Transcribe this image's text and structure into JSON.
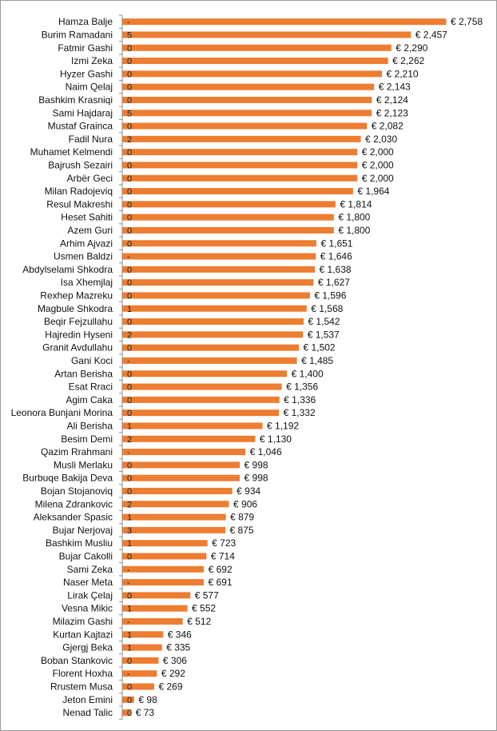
{
  "chart_data": {
    "type": "bar",
    "orientation": "horizontal",
    "title": "",
    "xlabel": "",
    "ylabel": "",
    "bar_color": "#ED7D31",
    "value_prefix": "€ ",
    "xlim": [
      0,
      2800
    ],
    "grid": false,
    "legend": "none",
    "categories": [
      "Hamza Balje",
      "Burim Ramadani",
      "Fatmir Gashi",
      "Izmi Zeka",
      "Hyzer Gashi",
      "Naim Qelaj",
      "Bashkim Krasniqi",
      "Sami Hajdaraj",
      "Mustaf Grainca",
      "Fadil Nura",
      "Muhamet Kelmendi",
      "Bajrush Sezairi",
      "Arbër Geci",
      "Milan Radojeviq",
      "Resul Makreshi",
      "Heset Sahiti",
      "Azem Guri",
      "Arhim Ajvazi",
      "Usmen Baldzi",
      "Abdylselami Shkodra",
      "Isa Xhemjlaj",
      "Rexhep Mazreku",
      "Magbule Shkodra",
      "Beqir Fejzullahu",
      "Hajredin Hyseni",
      "Granit Avdullahu",
      "Gani Koci",
      "Artan Berisha",
      "Esat Rraci",
      "Agim Caka",
      "Leonora Bunjani Morina",
      "Ali Berisha",
      "Besim Demi",
      "Qazim Rrahmani",
      "Musli Merlaku",
      "Burbuqe Bakija Deva",
      "Bojan Stojanoviq",
      "Milena Zdrankovic",
      "Aleksander Spasic",
      "Bujar Nerjovaj",
      "Bashkim Musliu",
      "Bujar Cakolli",
      "Sami Zeka",
      "Naser Meta",
      "Lirak Çelaj",
      "Vesna Mikic",
      "Milazim Gashi",
      "Kurtan Kajtazi",
      "Gjergj Beka",
      "Boban Stankovic",
      "Florent Hoxha",
      "Rrustem Musa",
      "Jeton Emini",
      "Nenad Talic"
    ],
    "values": [
      2758,
      2457,
      2290,
      2262,
      2210,
      2143,
      2124,
      2123,
      2082,
      2030,
      2000,
      2000,
      2000,
      1964,
      1814,
      1800,
      1800,
      1651,
      1646,
      1638,
      1627,
      1596,
      1568,
      1542,
      1537,
      1502,
      1485,
      1400,
      1356,
      1336,
      1332,
      1192,
      1130,
      1046,
      998,
      998,
      934,
      906,
      879,
      875,
      723,
      714,
      692,
      691,
      577,
      552,
      512,
      346,
      335,
      306,
      292,
      269,
      98,
      73
    ],
    "value_labels": [
      "€ 2,758",
      "€ 2,457",
      "€ 2,290",
      "€ 2,262",
      "€ 2,210",
      "€ 2,143",
      "€ 2,124",
      "€ 2,123",
      "€ 2,082",
      "€ 2,030",
      "€ 2,000",
      "€ 2,000",
      "€ 2,000",
      "€ 1,964",
      "€ 1,814",
      "€ 1,800",
      "€ 1,800",
      "€ 1,651",
      "€ 1,646",
      "€ 1,638",
      "€ 1,627",
      "€ 1,596",
      "€ 1,568",
      "€ 1,542",
      "€ 1,537",
      "€ 1,502",
      "€ 1,485",
      "€ 1,400",
      "€ 1,356",
      "€ 1,336",
      "€ 1,332",
      "€ 1,192",
      "€ 1,130",
      "€ 1,046",
      "€ 998",
      "€ 998",
      "€ 934",
      "€ 906",
      "€ 879",
      "€ 875",
      "€ 723",
      "€ 714",
      "€ 692",
      "€ 691",
      "€ 577",
      "€ 552",
      "€ 512",
      "€ 346",
      "€ 335",
      "€ 306",
      "€ 292",
      "€ 269",
      "€ 98",
      "€ 73"
    ],
    "inner_labels": [
      "-",
      "5",
      "0",
      "0",
      "0",
      "0",
      "0",
      "5",
      "0",
      "2",
      "0",
      "0",
      "0",
      "0",
      "0",
      "0",
      "0",
      "0",
      "-",
      "0",
      "0",
      "0",
      "1",
      "0",
      "2",
      "0",
      "-",
      "0",
      "0",
      "0",
      "0",
      "1",
      "2",
      "-",
      "0",
      "0",
      "0",
      "2",
      "1",
      "3",
      "1",
      "0",
      "-",
      "-",
      "0",
      "1",
      "-",
      "1",
      "1",
      "0",
      "-",
      "0",
      "0",
      "0"
    ]
  }
}
